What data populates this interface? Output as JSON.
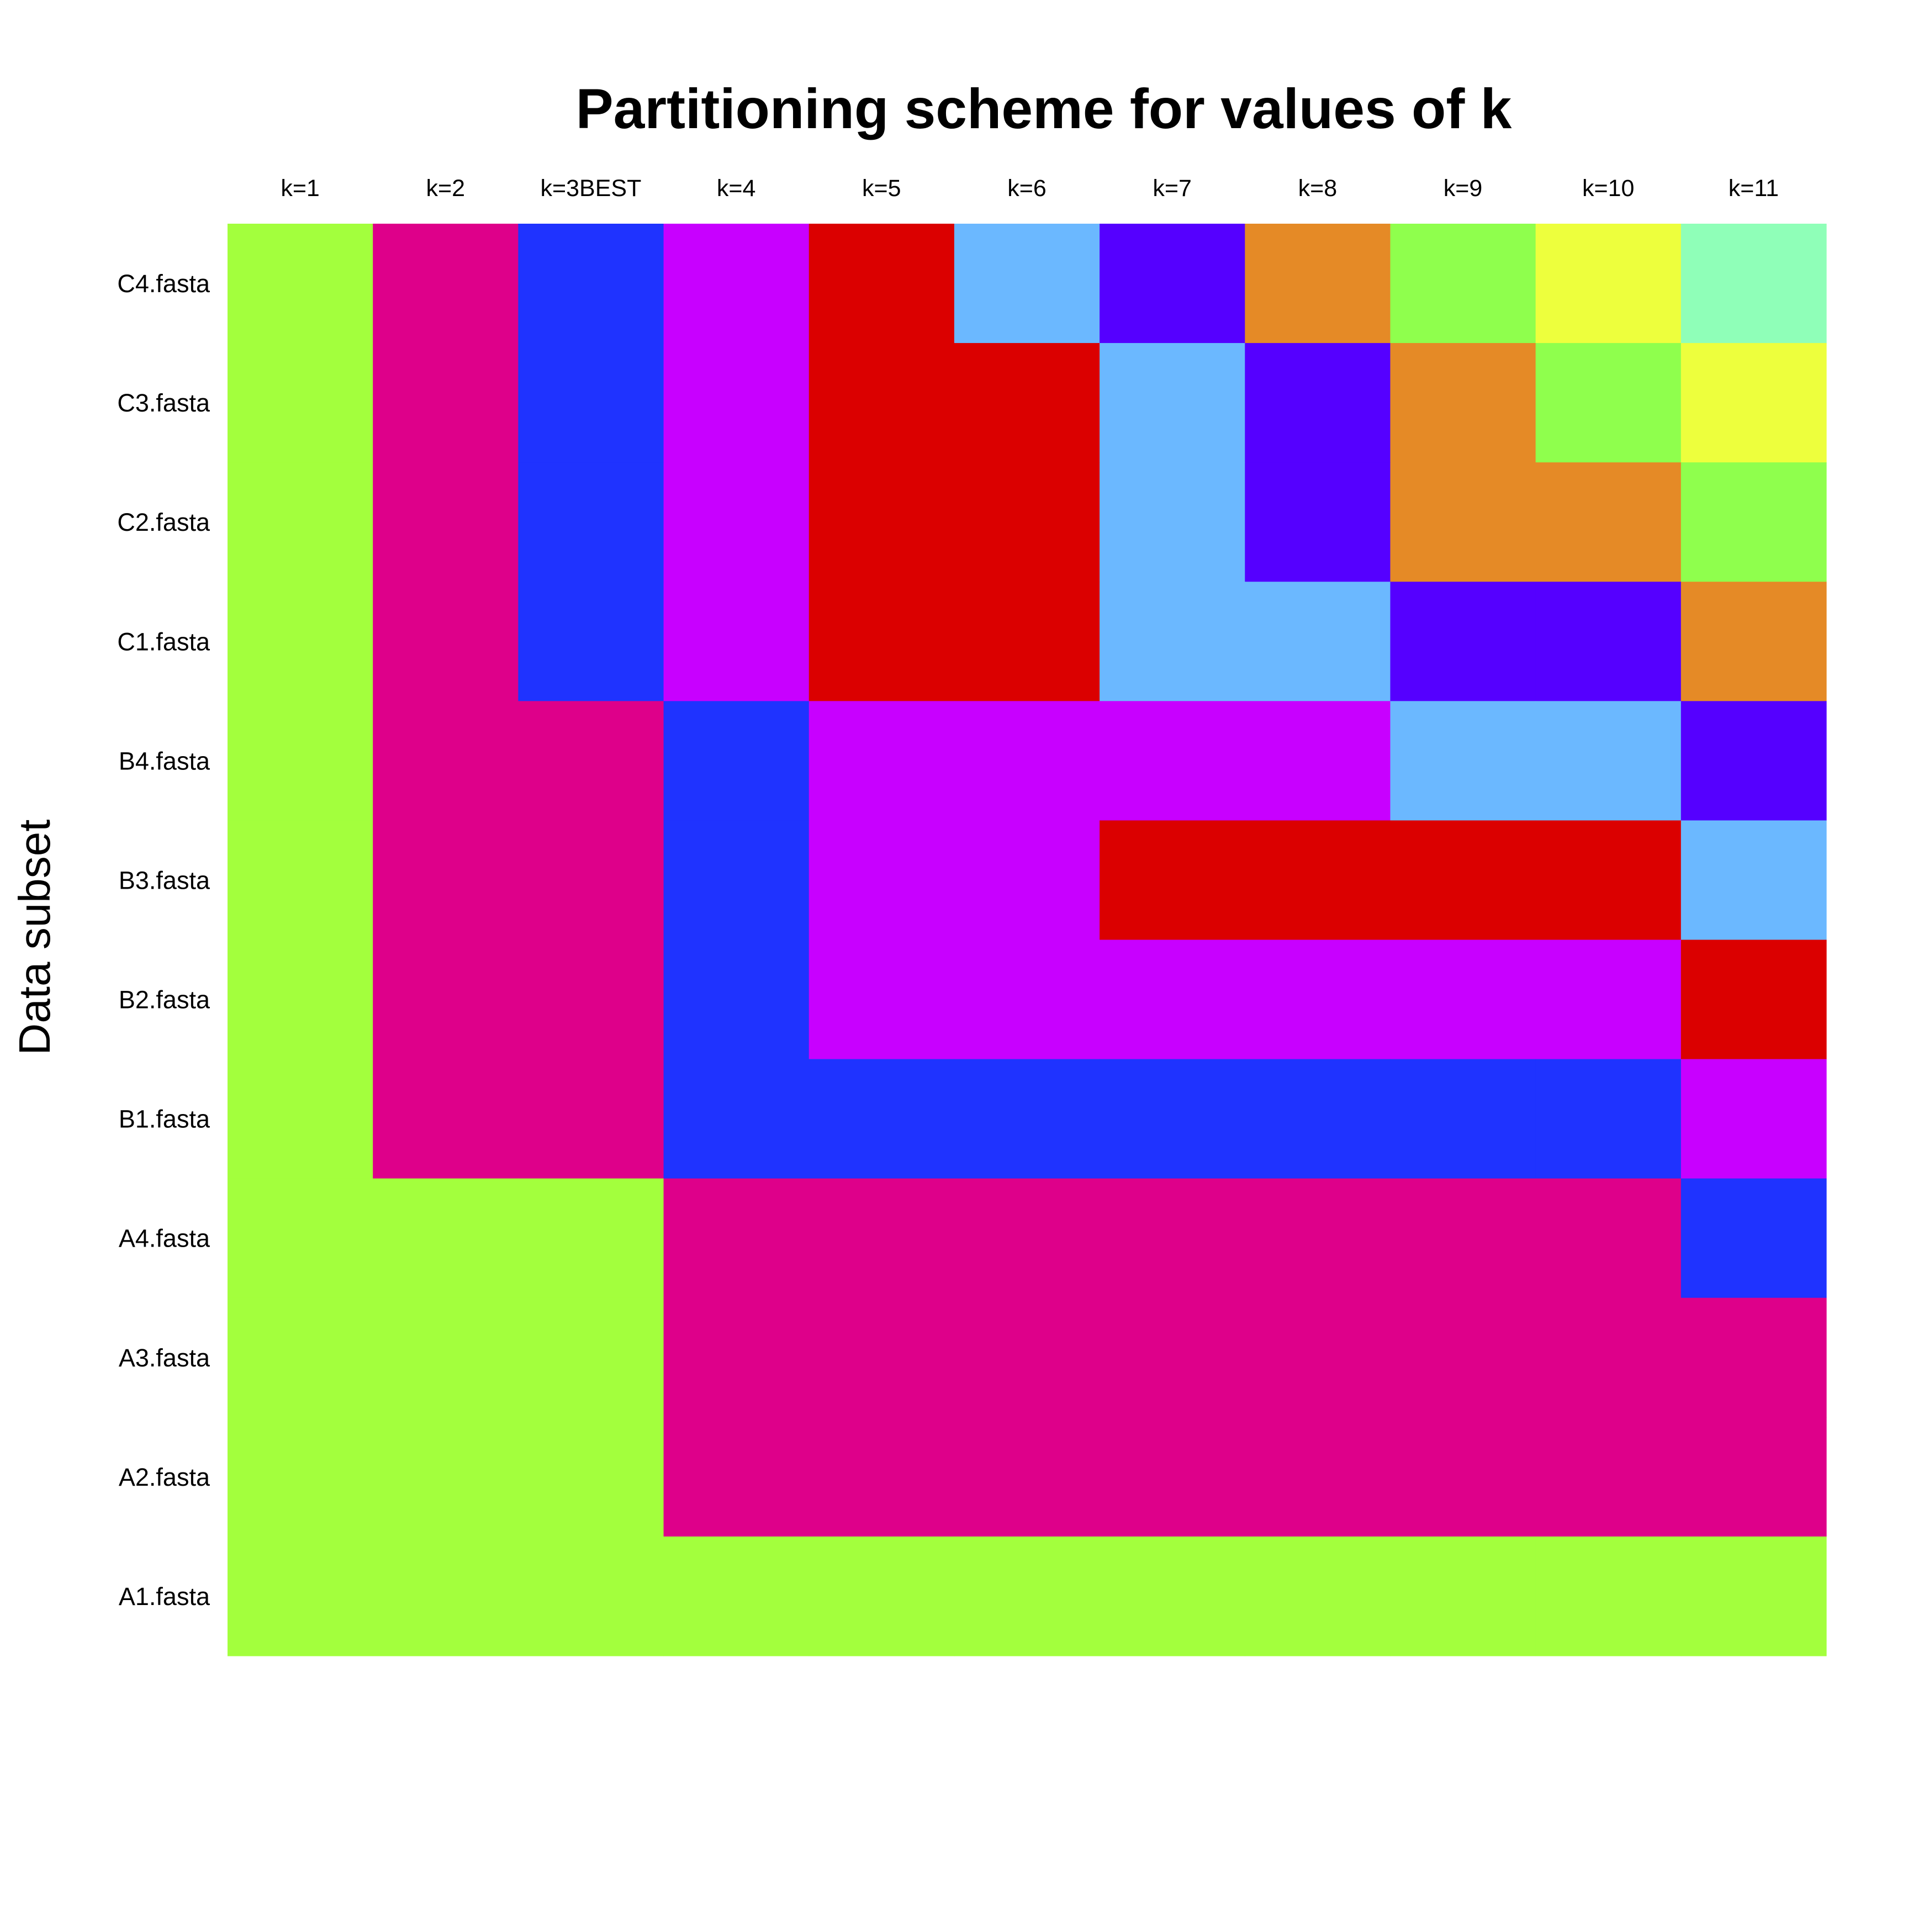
{
  "chart_data": {
    "type": "heatmap",
    "title": "Partitioning scheme for values of k",
    "xlabel": "",
    "ylabel": "Data subset",
    "columns": [
      "k=1",
      "k=2",
      "k=3BEST",
      "k=4",
      "k=5",
      "k=6",
      "k=7",
      "k=8",
      "k=9",
      "k=10",
      "k=11"
    ],
    "rows": [
      "C4.fasta",
      "C3.fasta",
      "C2.fasta",
      "C1.fasta",
      "B4.fasta",
      "B3.fasta",
      "B2.fasta",
      "B1.fasta",
      "A4.fasta",
      "A3.fasta",
      "A2.fasta",
      "A1.fasta"
    ],
    "cluster_colors": [
      "#A3FF3D",
      "#DE008A",
      "#1F33FF",
      "#C800FF",
      "#DB0000",
      "#6BB8FF",
      "#5500FF",
      "#E58A26",
      "#8FFF4D",
      "#EDFF3D",
      "#8FFFB8"
    ],
    "cluster_assignments": [
      [
        0,
        1,
        2,
        3,
        4,
        5,
        6,
        7,
        8,
        9,
        10
      ],
      [
        0,
        1,
        2,
        3,
        4,
        4,
        5,
        6,
        7,
        8,
        9
      ],
      [
        0,
        1,
        2,
        3,
        4,
        4,
        5,
        6,
        7,
        7,
        8
      ],
      [
        0,
        1,
        2,
        3,
        4,
        4,
        5,
        5,
        6,
        6,
        7
      ],
      [
        0,
        1,
        1,
        2,
        3,
        3,
        3,
        3,
        5,
        5,
        6
      ],
      [
        0,
        1,
        1,
        2,
        3,
        3,
        4,
        4,
        4,
        4,
        5
      ],
      [
        0,
        1,
        1,
        2,
        3,
        3,
        3,
        3,
        3,
        3,
        4
      ],
      [
        0,
        1,
        1,
        2,
        2,
        2,
        2,
        2,
        2,
        2,
        3
      ],
      [
        0,
        0,
        0,
        1,
        1,
        1,
        1,
        1,
        1,
        1,
        2
      ],
      [
        0,
        0,
        0,
        1,
        1,
        1,
        1,
        1,
        1,
        1,
        1
      ],
      [
        0,
        0,
        0,
        1,
        1,
        1,
        1,
        1,
        1,
        1,
        1
      ],
      [
        0,
        0,
        0,
        0,
        0,
        0,
        0,
        0,
        0,
        0,
        0
      ]
    ],
    "grid": false,
    "legend": "none"
  }
}
